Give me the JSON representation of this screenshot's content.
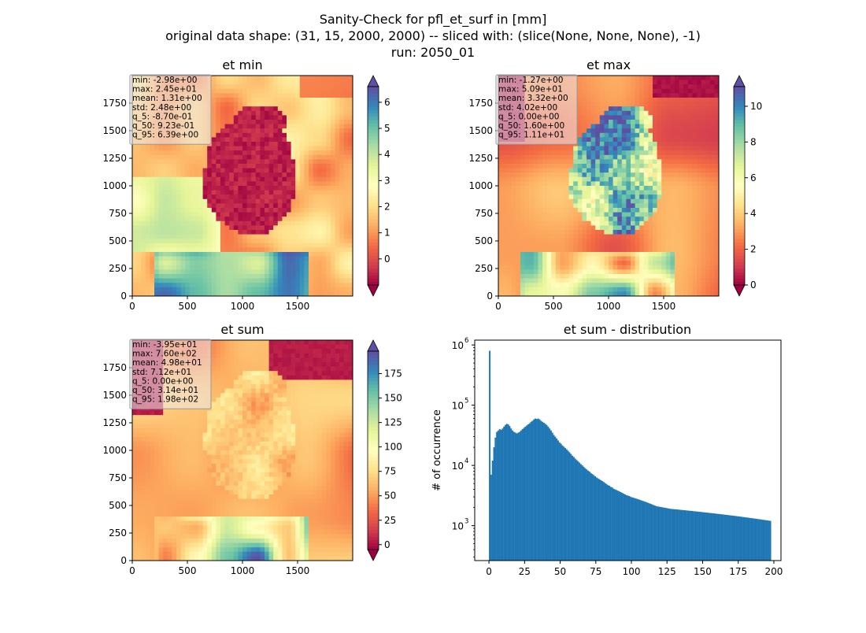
{
  "figure": {
    "suptitle_line1": "Sanity-Check for pfl_et_surf in [mm]",
    "suptitle_line2": "original data shape: (31, 15, 2000, 2000) -- sliced with: (slice(None, None, None), -1)",
    "suptitle_line3": "run: 2050_01"
  },
  "colormap": {
    "name": "Spectral",
    "stops": [
      "#9e0142",
      "#d53e4f",
      "#f46d43",
      "#fdae61",
      "#fee08b",
      "#ffffbf",
      "#e6f598",
      "#abdda4",
      "#66c2a5",
      "#3288bd",
      "#5e4fa2"
    ]
  },
  "chart_data": [
    {
      "type": "heatmap",
      "title": "et min",
      "x_ticks": [
        "0",
        "500",
        "1000",
        "1500"
      ],
      "y_ticks": [
        "0",
        "250",
        "500",
        "750",
        "1000",
        "1250",
        "1500",
        "1750"
      ],
      "extent": [
        0,
        2000,
        0,
        2000
      ],
      "colorbar": {
        "vmin": -1,
        "vmax": 6.6,
        "ticks": [
          "0",
          "1",
          "2",
          "3",
          "4",
          "5",
          "6"
        ],
        "extend": "both"
      },
      "stats": [
        {
          "label": "min: -2.98e+00"
        },
        {
          "label": "max: 2.45e+01"
        },
        {
          "label": "mean: 1.31e+00"
        },
        {
          "label": "std: 2.48e+00"
        },
        {
          "label": "q_5: -8.70e-01"
        },
        {
          "label": "q_50: 9.23e-01"
        },
        {
          "label": "q_95: 6.39e+00"
        }
      ]
    },
    {
      "type": "heatmap",
      "title": "et max",
      "x_ticks": [
        "0",
        "500",
        "1000",
        "1500"
      ],
      "y_ticks": [
        "0",
        "250",
        "500",
        "750",
        "1000",
        "1250",
        "1500",
        "1750"
      ],
      "extent": [
        0,
        2000,
        0,
        2000
      ],
      "colorbar": {
        "vmin": 0,
        "vmax": 11.1,
        "ticks": [
          "0",
          "2",
          "4",
          "6",
          "8",
          "10"
        ],
        "extend": "both"
      },
      "stats": [
        {
          "label": "min: -1.27e+00"
        },
        {
          "label": "max: 5.09e+01"
        },
        {
          "label": "mean: 3.32e+00"
        },
        {
          "label": "std: 4.02e+00"
        },
        {
          "label": "q_5: 0.00e+00"
        },
        {
          "label": "q_50: 1.60e+00"
        },
        {
          "label": "q_95: 1.11e+01"
        }
      ]
    },
    {
      "type": "heatmap",
      "title": "et sum",
      "x_ticks": [
        "0",
        "500",
        "1000",
        "1500"
      ],
      "y_ticks": [
        "0",
        "250",
        "500",
        "750",
        "1000",
        "1250",
        "1500",
        "1750"
      ],
      "extent": [
        0,
        2000,
        0,
        2000
      ],
      "colorbar": {
        "vmin": -5,
        "vmax": 198,
        "ticks": [
          "0",
          "25",
          "50",
          "75",
          "100",
          "125",
          "150",
          "175"
        ],
        "extend": "both"
      },
      "stats": [
        {
          "label": "min: -3.95e+01"
        },
        {
          "label": "max: 7.60e+02"
        },
        {
          "label": "mean: 4.98e+01"
        },
        {
          "label": "std: 7.12e+01"
        },
        {
          "label": "q_5: 0.00e+00"
        },
        {
          "label": "q_50: 3.14e+01"
        },
        {
          "label": "q_95: 1.98e+02"
        }
      ]
    },
    {
      "type": "bar",
      "title": "et sum - distribution",
      "ylabel": "# of occurrence",
      "yscale": "log",
      "xlim": [
        -10,
        205
      ],
      "ylim_log10": [
        2.42,
        6.08
      ],
      "x_ticks": [
        "0",
        "25",
        "50",
        "75",
        "100",
        "125",
        "150",
        "175",
        "200"
      ],
      "y_ticks": [
        {
          "base": "10",
          "exp": "3"
        },
        {
          "base": "10",
          "exp": "4"
        },
        {
          "base": "10",
          "exp": "5"
        },
        {
          "base": "10",
          "exp": "6"
        }
      ],
      "bin_start": 0,
      "bin_width": 1,
      "color": "#1f77b4",
      "values": [
        800000,
        7000,
        12000,
        20000,
        29000,
        36000,
        38000,
        40000,
        39000,
        41000,
        44000,
        47000,
        49000,
        48000,
        45000,
        41000,
        38000,
        36000,
        35000,
        34000,
        35000,
        36000,
        38000,
        40000,
        42000,
        44000,
        46000,
        48000,
        50000,
        53000,
        55000,
        58000,
        60000,
        59000,
        60000,
        58000,
        55000,
        53000,
        51000,
        49000,
        47000,
        44000,
        41000,
        38000,
        35000,
        32000,
        30000,
        28000,
        26000,
        24000,
        23000,
        21500,
        20500,
        19500,
        18500,
        17500,
        16500,
        15500,
        14500,
        13800,
        13000,
        12300,
        11700,
        11100,
        10500,
        10000,
        9500,
        9000,
        8600,
        8200,
        7900,
        7500,
        7200,
        6900,
        6600,
        6300,
        6100,
        5900,
        5700,
        5500,
        5300,
        5100,
        4900,
        4700,
        4600,
        4400,
        4300,
        4100,
        4000,
        3900,
        3800,
        3700,
        3600,
        3500,
        3400,
        3300,
        3200,
        3150,
        3100,
        3000,
        2950,
        2900,
        2850,
        2800,
        2750,
        2700,
        2650,
        2600,
        2550,
        2500,
        2450,
        2400,
        2350,
        2300,
        2250,
        2200,
        2150,
        2100,
        2080,
        2060,
        2040,
        2020,
        2000,
        1980,
        1960,
        1940,
        1920,
        1900,
        1890,
        1880,
        1870,
        1860,
        1850,
        1840,
        1830,
        1820,
        1810,
        1800,
        1790,
        1780,
        1770,
        1760,
        1750,
        1740,
        1730,
        1720,
        1710,
        1700,
        1690,
        1680,
        1670,
        1660,
        1650,
        1640,
        1630,
        1620,
        1610,
        1600,
        1590,
        1580,
        1570,
        1560,
        1550,
        1540,
        1530,
        1520,
        1510,
        1500,
        1490,
        1480,
        1470,
        1460,
        1450,
        1440,
        1430,
        1420,
        1410,
        1400,
        1390,
        1380,
        1370,
        1360,
        1350,
        1340,
        1330,
        1320,
        1310,
        1300,
        1290,
        1280,
        1270,
        1260,
        1250,
        1240,
        1230,
        1220,
        1210,
        1200
      ]
    }
  ]
}
